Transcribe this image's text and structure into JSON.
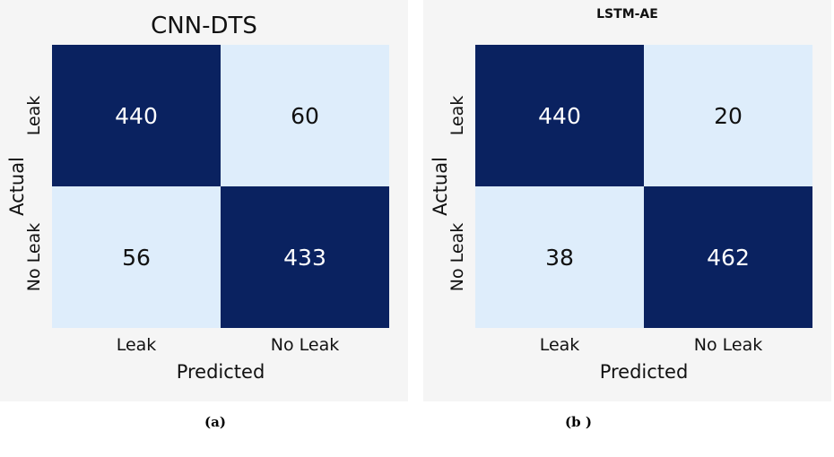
{
  "chart_data": [
    {
      "type": "heatmap",
      "title": "CNN-DTS",
      "xlabel": "Predicted",
      "ylabel": "Actual",
      "x_categories": [
        "Leak",
        "No Leak"
      ],
      "y_categories": [
        "Leak",
        "No Leak"
      ],
      "matrix": [
        [
          440,
          60
        ],
        [
          56,
          433
        ]
      ],
      "caption": "(a)",
      "colors": {
        "dark": "#0a2260",
        "light": "#deedfb",
        "text_dark": "#ffffff",
        "text_light": "#111111"
      }
    },
    {
      "type": "heatmap",
      "title": "LSTM-AE",
      "xlabel": "Predicted",
      "ylabel": "Actual",
      "x_categories": [
        "Leak",
        "No Leak"
      ],
      "y_categories": [
        "Leak",
        "No Leak"
      ],
      "matrix": [
        [
          440,
          20
        ],
        [
          38,
          462
        ]
      ],
      "caption": "(b )",
      "colors": {
        "dark": "#0a2260",
        "light": "#deedfb",
        "text_dark": "#ffffff",
        "text_light": "#111111"
      }
    }
  ]
}
